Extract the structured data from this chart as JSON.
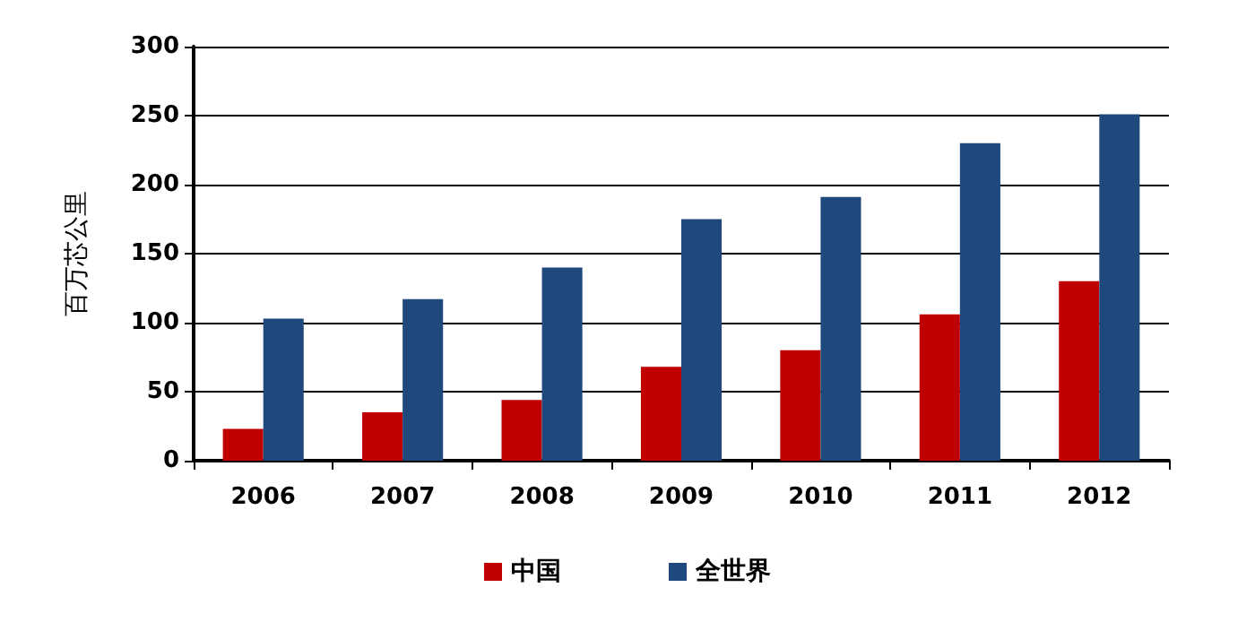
{
  "chart_data": {
    "type": "bar",
    "ylabel": "百万芯公里",
    "categories": [
      "2006",
      "2007",
      "2008",
      "2009",
      "2010",
      "2011",
      "2012"
    ],
    "series": [
      {
        "name": "中国",
        "color": "#c00000",
        "values": [
          23,
          35,
          44,
          68,
          80,
          106,
          130
        ]
      },
      {
        "name": "全世界",
        "color": "#1f497d",
        "values": [
          103,
          117,
          140,
          175,
          191,
          230,
          251
        ]
      }
    ],
    "ylim": [
      0,
      300
    ],
    "yticks": [
      0,
      50,
      100,
      150,
      200,
      250,
      300
    ],
    "grid": "y",
    "legend": "bottom"
  }
}
